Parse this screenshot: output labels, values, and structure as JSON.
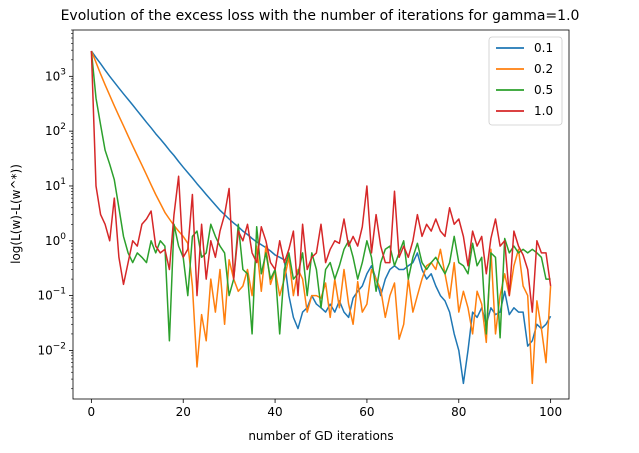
{
  "chart_data": {
    "type": "line",
    "title": "Evolution of the excess loss with the number of iterations for gamma=1.0",
    "xlabel": "number of GD iterations",
    "ylabel": "log(L(w)-L(w^*))",
    "xlim": [
      -4,
      104
    ],
    "ylim": [
      0.0013,
      7000
    ],
    "yscale": "log",
    "x_ticks": [
      0,
      20,
      40,
      60,
      80,
      100
    ],
    "x_tick_labels": [
      "0",
      "20",
      "40",
      "60",
      "80",
      "100"
    ],
    "y_ticks": [
      0.01,
      0.1,
      1,
      10,
      100,
      1000
    ],
    "y_tick_labels": [
      "10",
      "10",
      "10",
      "10",
      "10",
      "10"
    ],
    "y_tick_exponents": [
      "−2",
      "−1",
      "0",
      "1",
      "2",
      "3"
    ],
    "grid": false,
    "legend_position": "top-right",
    "x": [
      0,
      1,
      2,
      3,
      4,
      5,
      6,
      7,
      8,
      9,
      10,
      11,
      12,
      13,
      14,
      15,
      16,
      17,
      18,
      19,
      20,
      21,
      22,
      23,
      24,
      25,
      26,
      27,
      28,
      29,
      30,
      31,
      32,
      33,
      34,
      35,
      36,
      37,
      38,
      39,
      40,
      41,
      42,
      43,
      44,
      45,
      46,
      47,
      48,
      49,
      50,
      51,
      52,
      53,
      54,
      55,
      56,
      57,
      58,
      59,
      60,
      61,
      62,
      63,
      64,
      65,
      66,
      67,
      68,
      69,
      70,
      71,
      72,
      73,
      74,
      75,
      76,
      77,
      78,
      79,
      80,
      81,
      82,
      83,
      84,
      85,
      86,
      87,
      88,
      89,
      90,
      91,
      92,
      93,
      94,
      95,
      96,
      97,
      98,
      99,
      100
    ],
    "series": [
      {
        "name": "0.1",
        "color": "#1f77b4",
        "values": [
          2900,
          2200,
          1700,
          1300,
          1000,
          780,
          610,
          480,
          380,
          300,
          235,
          185,
          145,
          115,
          90,
          72,
          57,
          45,
          36,
          28,
          22,
          17.5,
          14,
          11,
          8.8,
          7,
          5.6,
          4.5,
          3.6,
          3.0,
          2.5,
          2.1,
          1.8,
          1.5,
          1.3,
          1.1,
          0.95,
          0.85,
          0.75,
          0.65,
          0.55,
          0.5,
          0.45,
          0.1,
          0.04,
          0.025,
          0.05,
          0.06,
          0.1,
          0.07,
          0.06,
          0.05,
          0.07,
          0.05,
          0.08,
          0.05,
          0.04,
          0.09,
          0.12,
          0.15,
          0.25,
          0.35,
          0.2,
          0.1,
          0.2,
          0.3,
          0.35,
          0.3,
          0.3,
          0.35,
          0.4,
          0.6,
          0.3,
          0.2,
          0.25,
          0.15,
          0.1,
          0.08,
          0.05,
          0.02,
          0.01,
          0.0025,
          0.01,
          0.05,
          0.04,
          0.06,
          0.03,
          0.06,
          0.045,
          0.05,
          0.12,
          0.045,
          0.06,
          0.05,
          0.05,
          0.012,
          0.015,
          0.03,
          0.025,
          0.03,
          0.042
        ]
      },
      {
        "name": "0.2",
        "color": "#ff7f0e",
        "values": [
          2900,
          1800,
          1100,
          700,
          450,
          290,
          190,
          125,
          82,
          54,
          36,
          24,
          16,
          10.5,
          7,
          4.8,
          3.3,
          2.5,
          1.9,
          1.5,
          1.2,
          0.9,
          0.15,
          0.005,
          0.045,
          0.015,
          0.2,
          0.05,
          0.3,
          0.03,
          0.45,
          0.2,
          0.12,
          0.15,
          0.3,
          0.1,
          0.8,
          0.12,
          0.8,
          0.16,
          0.3,
          0.1,
          0.2,
          0.5,
          0.1,
          0.3,
          0.2,
          0.05,
          0.1,
          0.1,
          0.09,
          0.17,
          0.04,
          0.2,
          0.06,
          0.3,
          0.07,
          0.03,
          0.18,
          0.05,
          0.07,
          0.3,
          0.2,
          0.13,
          0.04,
          0.1,
          0.17,
          0.016,
          0.03,
          0.2,
          0.05,
          0.1,
          0.2,
          0.35,
          0.4,
          0.3,
          0.7,
          0.25,
          0.09,
          0.4,
          0.05,
          0.12,
          0.06,
          0.02,
          0.12,
          0.07,
          0.014,
          0.7,
          0.02,
          0.1,
          0.25,
          0.1,
          0.35,
          0.7,
          0.15,
          0.1,
          0.0025,
          0.08,
          0.025,
          0.006,
          0.15
        ]
      },
      {
        "name": "0.5",
        "color": "#2ca02c",
        "values": [
          2900,
          400,
          130,
          45,
          25,
          13,
          4,
          1.2,
          0.6,
          0.4,
          0.6,
          0.5,
          0.4,
          1.0,
          0.6,
          1.0,
          0.8,
          0.015,
          2.0,
          0.8,
          0.5,
          0.1,
          1.2,
          1.5,
          0.5,
          0.6,
          2.0,
          1.2,
          0.8,
          0.6,
          0.1,
          0.2,
          2.0,
          0.3,
          0.25,
          0.02,
          1.8,
          0.25,
          0.6,
          0.2,
          0.3,
          0.02,
          0.3,
          0.6,
          0.2,
          0.25,
          0.6,
          0.1,
          0.6,
          0.3,
          0.06,
          0.3,
          0.4,
          0.2,
          0.35,
          0.7,
          1.0,
          0.5,
          0.2,
          0.4,
          1.0,
          0.5,
          0.12,
          0.4,
          0.7,
          0.8,
          0.35,
          0.6,
          1.0,
          0.2,
          0.5,
          0.9,
          0.4,
          0.3,
          0.4,
          0.5,
          0.35,
          0.25,
          0.4,
          1.2,
          0.4,
          0.35,
          0.25,
          0.9,
          0.35,
          0.5,
          0.02,
          0.6,
          0.5,
          0.017,
          1.1,
          0.6,
          0.8,
          0.6,
          0.7,
          0.6,
          0.7,
          0.6,
          0.5,
          0.2,
          0.2
        ]
      },
      {
        "name": "1.0",
        "color": "#d62728",
        "values": [
          2900,
          10,
          3,
          2,
          1.0,
          6,
          0.5,
          0.16,
          0.4,
          1.0,
          0.8,
          2.0,
          2.5,
          3.5,
          0.8,
          0.6,
          0.7,
          0.3,
          3.0,
          15,
          0.5,
          0.7,
          7,
          0.1,
          2.0,
          0.2,
          1.0,
          0.5,
          1.5,
          3.0,
          9,
          0.2,
          1.5,
          1.0,
          2.0,
          0.6,
          0.4,
          1.8,
          1.0,
          0.4,
          0.3,
          1.0,
          0.4,
          0.7,
          1.5,
          0.1,
          2.0,
          0.3,
          0.5,
          0.6,
          2.0,
          0.4,
          0.7,
          1.0,
          0.9,
          2.5,
          0.8,
          1.2,
          0.8,
          1.8,
          10,
          0.6,
          3.0,
          0.8,
          0.4,
          0.4,
          8,
          0.5,
          0.8,
          0.5,
          1.0,
          3.0,
          1.2,
          2.0,
          1.5,
          2.5,
          1.5,
          1.2,
          4.0,
          2.0,
          2.5,
          1.2,
          0.35,
          1.5,
          0.8,
          1.2,
          0.25,
          1.1,
          2.5,
          0.8,
          1.0,
          0.1,
          1.5,
          0.8,
          0.55,
          0.3,
          0.05,
          1.0,
          0.6,
          0.6,
          0.15
        ]
      }
    ]
  }
}
